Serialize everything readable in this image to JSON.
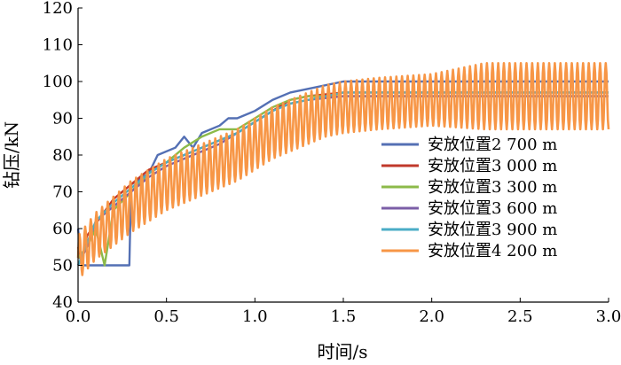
{
  "chart_data": {
    "type": "line",
    "title": "",
    "xlabel": "时间/s",
    "ylabel": "钻压/kN",
    "xlim": [
      0,
      3.0
    ],
    "ylim": [
      40,
      120
    ],
    "xticks": [
      "0.0",
      "0.5",
      "1.0",
      "1.5",
      "2.0",
      "2.5",
      "3.0"
    ],
    "yticks": [
      "40",
      "50",
      "60",
      "70",
      "80",
      "90",
      "100",
      "110",
      "120"
    ],
    "legend_position": "right",
    "series": [
      {
        "name": "安放位置2 700 m",
        "color": "#5470b4",
        "x": [
          0.0,
          0.02,
          0.03,
          0.29,
          0.3,
          0.4,
          0.45,
          0.55,
          0.6,
          0.65,
          0.7,
          0.8,
          0.85,
          0.9,
          1.0,
          1.1,
          1.2,
          1.3,
          1.5,
          3.0
        ],
        "values": [
          60,
          50,
          50,
          50,
          72,
          75,
          80,
          82,
          85,
          82,
          86,
          88,
          90,
          90,
          92,
          95,
          97,
          98,
          100,
          100
        ]
      },
      {
        "name": "安放位置3 000 m",
        "color": "#c0392b",
        "x": [
          0.0,
          0.02,
          0.05,
          0.2,
          0.3,
          0.4,
          0.5,
          0.6,
          0.7,
          0.8,
          0.9,
          1.0,
          1.1,
          1.2,
          1.3,
          1.5,
          3.0
        ],
        "values": [
          55,
          50,
          58,
          68,
          72,
          76,
          78,
          80,
          82,
          84,
          86,
          89,
          92,
          95,
          96,
          97,
          97
        ]
      },
      {
        "name": "安放位置3 300 m",
        "color": "#8cba4a",
        "x": [
          0.0,
          0.05,
          0.1,
          0.15,
          0.2,
          0.3,
          0.4,
          0.5,
          0.6,
          0.7,
          0.8,
          0.9,
          1.0,
          1.1,
          1.2,
          1.3,
          1.5,
          3.0
        ],
        "values": [
          52,
          55,
          60,
          50,
          65,
          70,
          75,
          78,
          82,
          85,
          87,
          87,
          90,
          93,
          95,
          96,
          96,
          96
        ]
      },
      {
        "name": "安放位置3 600 m",
        "color": "#7b5ea7",
        "x": [
          0.0,
          0.05,
          0.1,
          0.2,
          0.3,
          0.4,
          0.5,
          0.6,
          0.7,
          0.8,
          0.9,
          1.0,
          1.1,
          1.2,
          1.3,
          1.5,
          3.0
        ],
        "values": [
          50,
          55,
          62,
          66,
          70,
          74,
          77,
          79,
          81,
          83,
          86,
          89,
          92,
          94,
          95,
          96,
          96
        ]
      },
      {
        "name": "安放位置3 900 m",
        "color": "#4aacc6",
        "x": [
          0.0,
          0.05,
          0.1,
          0.2,
          0.3,
          0.4,
          0.5,
          0.6,
          0.7,
          0.8,
          0.9,
          1.0,
          1.1,
          1.2,
          1.3,
          1.5,
          3.0
        ],
        "values": [
          50,
          56,
          62,
          67,
          71,
          75,
          78,
          80,
          82,
          84,
          86,
          89,
          92,
          94,
          95,
          97,
          97
        ]
      },
      {
        "name": "安放位置4 200 m",
        "color": "#f79646",
        "oscillating": true,
        "period": 0.032,
        "baseline": {
          "x": [
            0.0,
            0.1,
            0.3,
            0.5,
            0.7,
            0.9,
            1.0,
            1.1,
            1.2,
            1.3,
            1.4,
            1.5,
            1.7,
            2.0,
            2.3,
            2.6,
            3.0
          ],
          "values": [
            52,
            58,
            66,
            72,
            76,
            80,
            83,
            86,
            88,
            90,
            92,
            93,
            94,
            95,
            96,
            96,
            96
          ]
        },
        "amplitude": {
          "x": [
            0.0,
            0.3,
            1.0,
            1.5,
            2.0,
            2.3,
            3.0
          ],
          "values": [
            6,
            7,
            7,
            7,
            7,
            9,
            9
          ]
        }
      }
    ]
  }
}
